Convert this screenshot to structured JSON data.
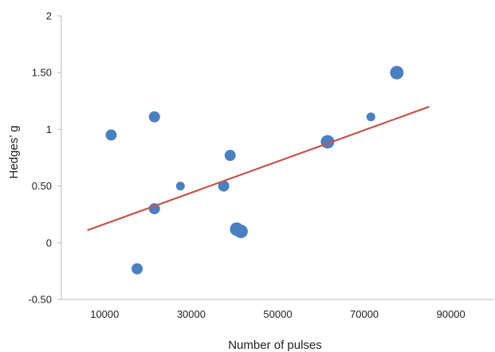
{
  "chart_data": {
    "type": "scatter",
    "title": "",
    "xlabel": "Number of pulses",
    "ylabel": "Hedges’ g",
    "xlim": [
      0,
      100000
    ],
    "ylim": [
      -0.5,
      2
    ],
    "x_ticks": [
      10000,
      30000,
      50000,
      70000,
      90000
    ],
    "x_tick_labels": [
      "10000",
      "30000",
      "50000",
      "70000",
      "90000"
    ],
    "y_ticks": [
      -0.5,
      0,
      0.5,
      1,
      1.5,
      2
    ],
    "y_tick_labels": [
      "-0.50",
      "0",
      "0.50",
      "1",
      "1.50",
      "2"
    ],
    "grid": false,
    "legend": "none",
    "point_color": "#4a7fc1",
    "trend_color": "#c9544c",
    "points": [
      {
        "x": 11500,
        "y": 0.95,
        "weight": 2
      },
      {
        "x": 17500,
        "y": -0.23,
        "weight": 2
      },
      {
        "x": 21500,
        "y": 1.11,
        "weight": 2
      },
      {
        "x": 21500,
        "y": 0.3,
        "weight": 2
      },
      {
        "x": 27500,
        "y": 0.5,
        "weight": 1
      },
      {
        "x": 37500,
        "y": 0.5,
        "weight": 2
      },
      {
        "x": 39000,
        "y": 0.77,
        "weight": 2
      },
      {
        "x": 40500,
        "y": 0.12,
        "weight": 3
      },
      {
        "x": 41500,
        "y": 0.1,
        "weight": 3
      },
      {
        "x": 61500,
        "y": 0.89,
        "weight": 3
      },
      {
        "x": 71500,
        "y": 1.11,
        "weight": 1
      },
      {
        "x": 77500,
        "y": 1.5,
        "weight": 3
      }
    ],
    "trendline": {
      "x": [
        6000,
        85000
      ],
      "y": [
        0.11,
        1.2
      ]
    }
  }
}
